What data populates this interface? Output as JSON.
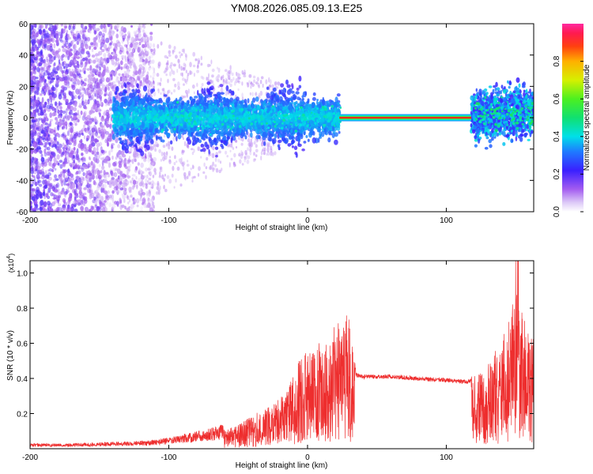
{
  "title": "YM08.2026.085.09.13.E25",
  "colors": {
    "snr_line": "#ee2e2e",
    "ridge_band": "#e82a1c",
    "scatter_main": "#6a22d8"
  },
  "chart_data": [
    {
      "type": "heatmap",
      "xlabel": "Height of straight line (km)",
      "ylabel": "Frequency (Hz)",
      "xlim": [
        -200,
        163
      ],
      "ylim": [
        -60,
        60
      ],
      "x_ticks": [
        "-200",
        "-100",
        "0",
        "100"
      ],
      "x_tick_values": [
        -200,
        -100,
        0,
        100
      ],
      "y_ticks": [
        "-60",
        "-40",
        "-20",
        "0",
        "20",
        "40",
        "60"
      ],
      "y_tick_values": [
        -60,
        -40,
        -20,
        0,
        20,
        40,
        60
      ],
      "colorbar": {
        "label": "Normalized spectral amplitude",
        "range": [
          0,
          1
        ],
        "ticks": [
          "0.0",
          "0.2",
          "0.4",
          "0.6",
          "0.8"
        ],
        "tick_values": [
          0,
          0.2,
          0.4,
          0.6,
          0.8
        ]
      },
      "features": {
        "ridge_x_range": [
          23,
          118
        ],
        "ridge_frequency": 0,
        "ridge_amplitude": 1.0
      }
    },
    {
      "type": "line",
      "xlabel": "Height of straight line (km)",
      "ylabel": "SNR (10 * v/v)",
      "y_multiplier": "(x10",
      "y_multiplier_exp": "4",
      "y_multiplier_close": ")",
      "xlim": [
        -200,
        163
      ],
      "ylim": [
        0,
        1.07
      ],
      "x_ticks": [
        "-200",
        "-100",
        "0",
        "100"
      ],
      "x_tick_values": [
        -200,
        -100,
        0,
        100
      ],
      "y_ticks": [
        "0.2",
        "0.4",
        "0.6",
        "0.8",
        "1.0"
      ],
      "y_tick_values": [
        0.2,
        0.4,
        0.6,
        0.8,
        1.0
      ],
      "series": [
        {
          "x": [
            -200,
            -175,
            -150,
            -125,
            -110,
            -95,
            -80,
            -70,
            -60,
            -50,
            -40,
            -30,
            -20,
            -15,
            -10,
            -5,
            0,
            5,
            10,
            15,
            20,
            25,
            30,
            35,
            40,
            60,
            80,
            100,
            115,
            120,
            125,
            130,
            135,
            140,
            145,
            150,
            155,
            160,
            163
          ],
          "values": [
            0.02,
            0.02,
            0.025,
            0.03,
            0.035,
            0.05,
            0.07,
            0.08,
            0.1,
            0.13,
            0.18,
            0.22,
            0.28,
            0.32,
            0.4,
            0.5,
            0.55,
            0.52,
            0.62,
            0.55,
            0.7,
            0.68,
            0.75,
            0.42,
            0.41,
            0.41,
            0.4,
            0.39,
            0.38,
            0.4,
            0.42,
            0.45,
            0.55,
            0.6,
            0.7,
            0.85,
            0.75,
            0.65,
            0.6
          ]
        }
      ]
    }
  ]
}
